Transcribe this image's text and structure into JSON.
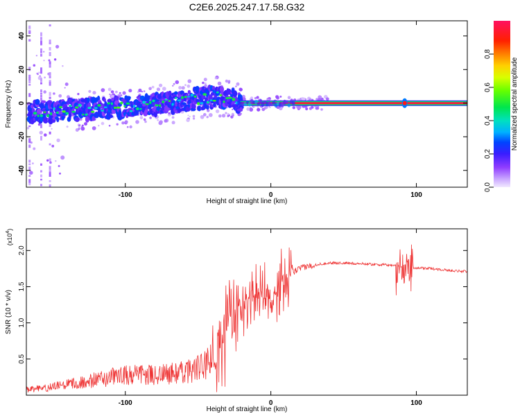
{
  "title": "C2E6.2025.247.17.58.G32",
  "chart_data": [
    {
      "type": "heatmap",
      "xlabel": "Height of straight line (km)",
      "ylabel": "Frequency (Hz)",
      "xlim": [
        -168,
        135
      ],
      "ylim": [
        -50,
        49
      ],
      "xticks": [
        -100,
        0,
        100
      ],
      "yticks": [
        -40,
        -20,
        0,
        20,
        40
      ],
      "colorbar": {
        "label": "Normalized spectral amplitude",
        "range": [
          0,
          1
        ],
        "ticks": [
          "0.0",
          "0.2",
          "0.4",
          "0.6",
          "0.8"
        ],
        "tick_values": [
          0,
          0.2,
          0.4,
          0.6,
          0.8
        ]
      },
      "ridge": {
        "x": [
          -165,
          -150,
          -130,
          -110,
          -90,
          -70,
          -55,
          -45,
          -35,
          -25,
          -20,
          0,
          15,
          135
        ],
        "freq_hz": [
          -5,
          -5,
          -4,
          -3,
          -2,
          0,
          2,
          3,
          4,
          2,
          0,
          0,
          0,
          0
        ]
      }
    },
    {
      "type": "line",
      "xlabel": "Height of straight line (km)",
      "ylabel": "SNR (10 * v/v)",
      "y_multiplier": "(x10",
      "y_multiplier_exp": "4",
      "xlim": [
        -168,
        135
      ],
      "ylim": [
        0,
        23000
      ],
      "xticks": [
        -100,
        0,
        100
      ],
      "yticks": [
        5000,
        10000,
        15000,
        20000
      ],
      "ytick_labels": [
        "0.5",
        "1.0",
        "1.5",
        "2.0"
      ],
      "series": [
        {
          "name": "SNR",
          "color": "#ee3333",
          "envelope_x": [
            -168,
            -150,
            -120,
            -100,
            -80,
            -60,
            -45,
            -40,
            -35,
            -30,
            -25,
            -20,
            -15,
            -10,
            -5,
            0,
            5,
            10,
            15,
            20,
            25,
            30,
            40,
            60,
            80,
            88,
            92,
            96,
            100,
            110,
            120,
            135
          ],
          "envelope_y": [
            600,
            900,
            1700,
            2200,
            2200,
            2500,
            3200,
            4000,
            6000,
            9000,
            11000,
            12500,
            13500,
            13800,
            13500,
            14000,
            14500,
            16000,
            17000,
            17500,
            17800,
            18000,
            18300,
            18200,
            18000,
            17900,
            17800,
            17700,
            17600,
            17500,
            17300,
            17100
          ]
        }
      ]
    }
  ]
}
